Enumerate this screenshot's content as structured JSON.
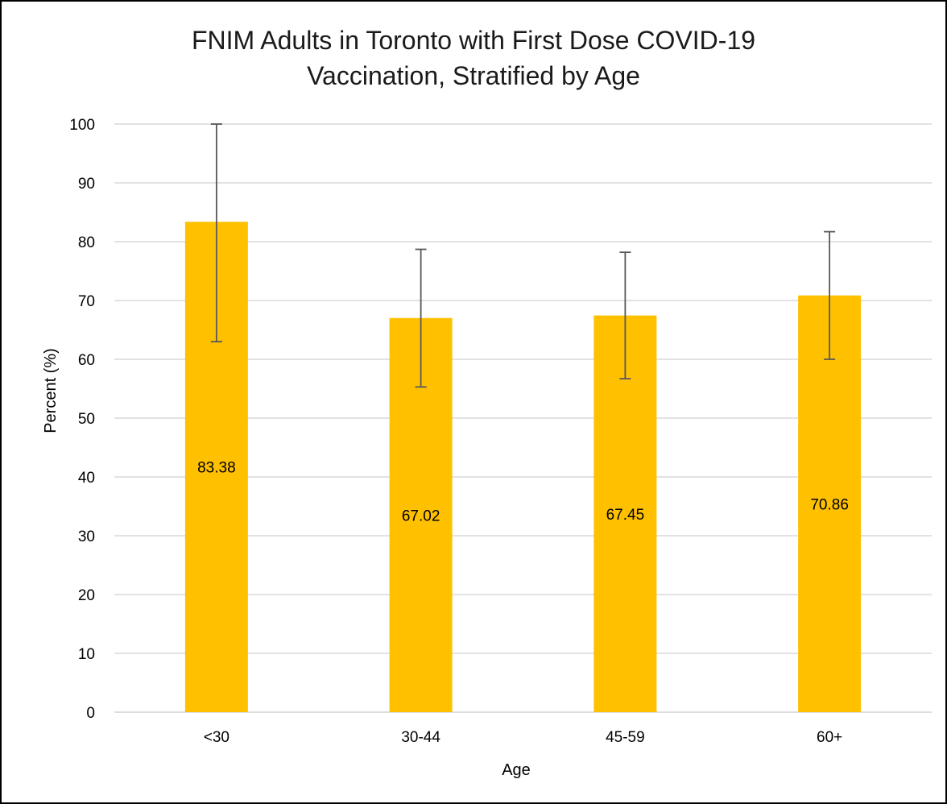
{
  "chart_data": {
    "type": "bar",
    "title_lines": [
      "FNIM Adults in Toronto with First Dose COVID-19",
      "Vaccination, Stratified by Age"
    ],
    "xlabel": "Age",
    "ylabel": "Percent (%)",
    "categories": [
      "<30",
      "30-44",
      "45-59",
      "60+"
    ],
    "values": [
      83.38,
      67.02,
      67.45,
      70.86
    ],
    "data_labels": [
      "83.38",
      "67.02",
      "67.45",
      "70.86"
    ],
    "error_bars": [
      {
        "low": 63.0,
        "high": 100.0
      },
      {
        "low": 55.3,
        "high": 78.7
      },
      {
        "low": 56.7,
        "high": 78.2
      },
      {
        "low": 60.0,
        "high": 81.7
      }
    ],
    "ylim": [
      0,
      100
    ],
    "yticks": [
      0,
      10,
      20,
      30,
      40,
      50,
      60,
      70,
      80,
      90,
      100
    ],
    "grid": true,
    "legend": "none",
    "colors": {
      "bar": "#FFC000",
      "error_bar": "#595959",
      "grid": "#D9D9D9",
      "axis_text": "#000000"
    }
  }
}
